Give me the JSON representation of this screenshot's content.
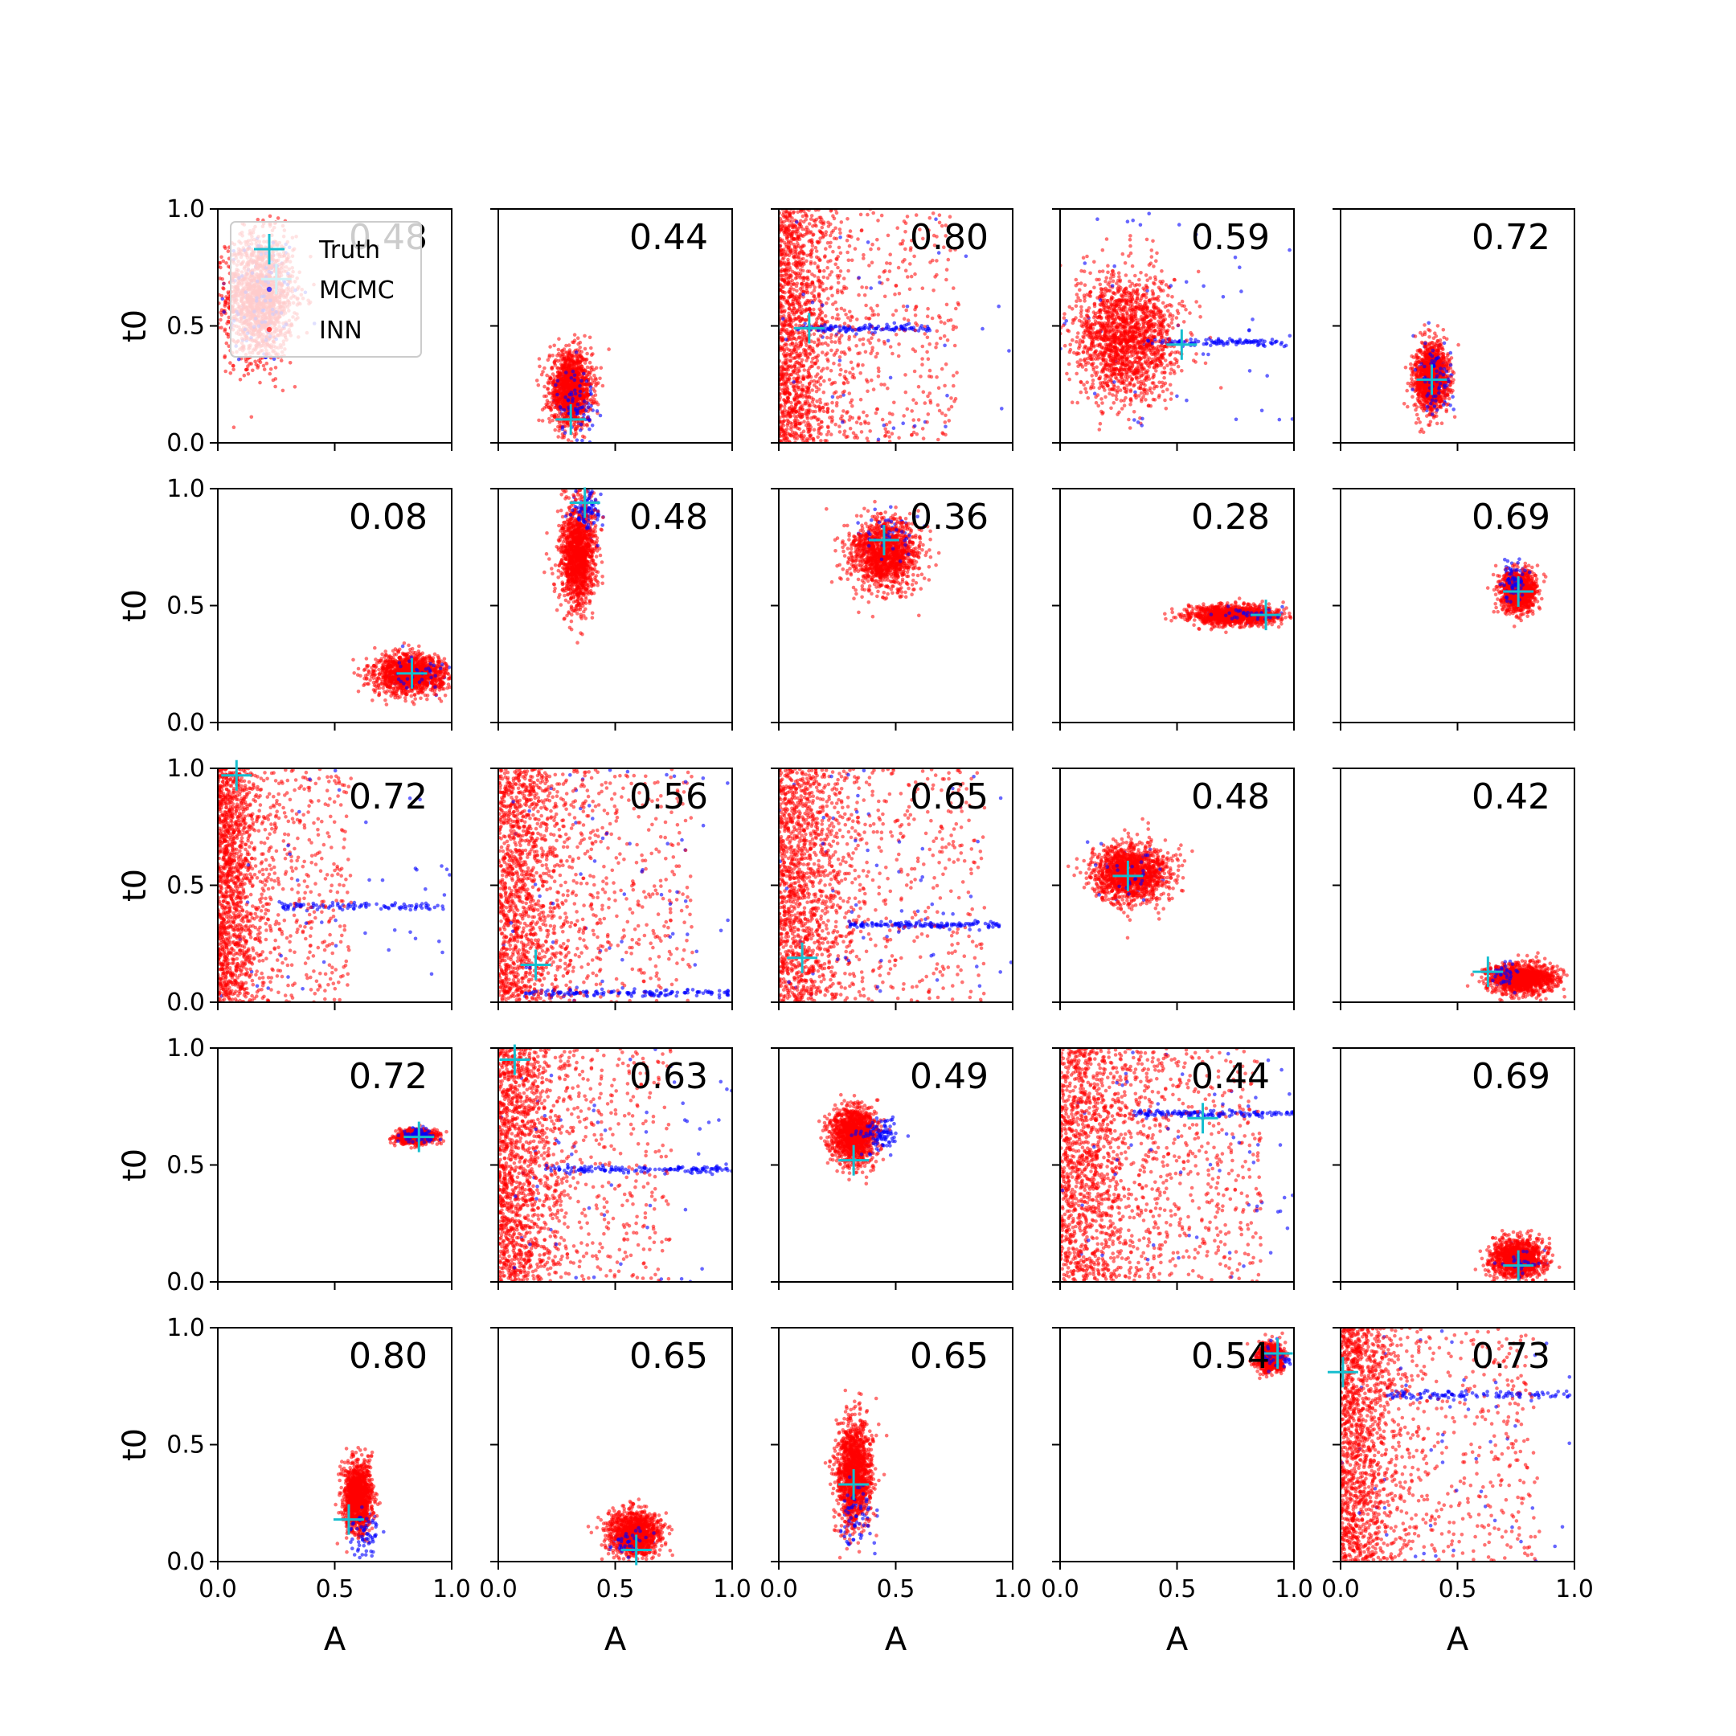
{
  "chart_data": {
    "type": "scatter",
    "layout": {
      "rows": 5,
      "cols": 5
    },
    "xlabel": "A",
    "ylabel": "t0",
    "xlim": [
      0,
      1
    ],
    "ylim": [
      0,
      1
    ],
    "xticks": [
      "0.0",
      "0.5",
      "1.0"
    ],
    "yticks": [
      "0.0",
      "0.5",
      "1.0"
    ],
    "legend": {
      "placement": "upper-left of first panel",
      "entries": [
        {
          "label": "Truth",
          "color": "#17becf",
          "marker": "plus"
        },
        {
          "label": "MCMC",
          "color": "#0000ff",
          "marker": "dot"
        },
        {
          "label": "INN",
          "color": "#ff0000",
          "marker": "dot"
        }
      ]
    },
    "colors": {
      "truth": "#17becf",
      "mcmc": "#0000ff",
      "inn": "#ff0000"
    },
    "panels": [
      {
        "score": "0.48",
        "truth": [
          0.25,
          0.7
        ],
        "inn": {
          "kind": "blob",
          "cx": 0.18,
          "cy": 0.62,
          "sx": 0.12,
          "sy": 0.22,
          "n": 1600
        },
        "mcmc": {
          "kind": "blob",
          "cx": 0.18,
          "cy": 0.62,
          "sx": 0.14,
          "sy": 0.25,
          "n": 120
        }
      },
      {
        "score": "0.44",
        "truth": [
          0.31,
          0.1
        ],
        "inn": {
          "kind": "blob",
          "cx": 0.31,
          "cy": 0.23,
          "sx": 0.075,
          "sy": 0.13,
          "n": 1300
        },
        "mcmc": {
          "kind": "blob",
          "cx": 0.33,
          "cy": 0.18,
          "sx": 0.07,
          "sy": 0.12,
          "n": 120
        }
      },
      {
        "score": "0.80",
        "truth": [
          0.13,
          0.49
        ],
        "inn": {
          "kind": "band",
          "x0": 0.0,
          "x1": 0.22,
          "tail": 0.55,
          "n": 1700
        },
        "mcmc": {
          "kind": "streak",
          "y": 0.49,
          "x0": 0.08,
          "x1": 0.65,
          "n": 160
        }
      },
      {
        "score": "0.59",
        "truth": [
          0.52,
          0.42
        ],
        "inn": {
          "kind": "blob",
          "cx": 0.28,
          "cy": 0.45,
          "sx": 0.18,
          "sy": 0.22,
          "n": 1700
        },
        "mcmc": {
          "kind": "streak",
          "y": 0.43,
          "x0": 0.35,
          "x1": 0.95,
          "n": 160
        }
      },
      {
        "score": "0.72",
        "truth": [
          0.39,
          0.27
        ],
        "inn": {
          "kind": "blob",
          "cx": 0.39,
          "cy": 0.28,
          "sx": 0.06,
          "sy": 0.12,
          "n": 1200
        },
        "mcmc": {
          "kind": "blob",
          "cx": 0.4,
          "cy": 0.28,
          "sx": 0.06,
          "sy": 0.12,
          "n": 120
        }
      },
      {
        "score": "0.08",
        "truth": [
          0.83,
          0.21
        ],
        "inn": {
          "kind": "blob",
          "cx": 0.82,
          "cy": 0.21,
          "sx": 0.13,
          "sy": 0.07,
          "n": 1300
        },
        "mcmc": {
          "kind": "blob",
          "cx": 0.85,
          "cy": 0.21,
          "sx": 0.1,
          "sy": 0.06,
          "n": 60
        }
      },
      {
        "score": "0.48",
        "truth": [
          0.37,
          0.94
        ],
        "inn": {
          "kind": "blob",
          "cx": 0.34,
          "cy": 0.72,
          "sx": 0.06,
          "sy": 0.18,
          "n": 1400
        },
        "mcmc": {
          "kind": "blob",
          "cx": 0.38,
          "cy": 0.9,
          "sx": 0.05,
          "sy": 0.08,
          "n": 100
        }
      },
      {
        "score": "0.36",
        "truth": [
          0.45,
          0.78
        ],
        "inn": {
          "kind": "blob",
          "cx": 0.45,
          "cy": 0.72,
          "sx": 0.12,
          "sy": 0.12,
          "n": 1400
        },
        "mcmc": {
          "kind": "blob",
          "cx": 0.47,
          "cy": 0.8,
          "sx": 0.1,
          "sy": 0.08,
          "n": 60
        }
      },
      {
        "score": "0.28",
        "truth": [
          0.88,
          0.46
        ],
        "inn": {
          "kind": "blob",
          "cx": 0.74,
          "cy": 0.46,
          "sx": 0.16,
          "sy": 0.035,
          "n": 1200
        },
        "mcmc": {
          "kind": "blob",
          "cx": 0.8,
          "cy": 0.46,
          "sx": 0.12,
          "sy": 0.03,
          "n": 60
        }
      },
      {
        "score": "0.69",
        "truth": [
          0.76,
          0.56
        ],
        "inn": {
          "kind": "blob",
          "cx": 0.76,
          "cy": 0.56,
          "sx": 0.06,
          "sy": 0.07,
          "n": 1100
        },
        "mcmc": {
          "kind": "blob",
          "cx": 0.75,
          "cy": 0.6,
          "sx": 0.04,
          "sy": 0.07,
          "n": 120
        }
      },
      {
        "score": "0.72",
        "truth": [
          0.08,
          0.97
        ],
        "inn": {
          "kind": "band",
          "x0": 0.0,
          "x1": 0.17,
          "tail": 0.4,
          "n": 1700
        },
        "mcmc": {
          "kind": "streak",
          "y": 0.41,
          "x0": 0.25,
          "x1": 0.98,
          "n": 140
        }
      },
      {
        "score": "0.56",
        "truth": [
          0.16,
          0.16
        ],
        "inn": {
          "kind": "band",
          "x0": 0.0,
          "x1": 0.28,
          "tail": 0.55,
          "n": 1700
        },
        "mcmc": {
          "kind": "streak",
          "y": 0.04,
          "x0": 0.1,
          "x1": 1.0,
          "n": 200
        }
      },
      {
        "score": "0.65",
        "truth": [
          0.1,
          0.19
        ],
        "inn": {
          "kind": "band",
          "x0": 0.0,
          "x1": 0.28,
          "tail": 0.6,
          "n": 1700
        },
        "mcmc": {
          "kind": "streak",
          "y": 0.33,
          "x0": 0.3,
          "x1": 0.95,
          "n": 200
        }
      },
      {
        "score": "0.48",
        "truth": [
          0.29,
          0.54
        ],
        "inn": {
          "kind": "blob",
          "cx": 0.3,
          "cy": 0.55,
          "sx": 0.13,
          "sy": 0.1,
          "n": 1500
        },
        "mcmc": {
          "kind": "blob",
          "cx": 0.3,
          "cy": 0.55,
          "sx": 0.12,
          "sy": 0.1,
          "n": 50
        }
      },
      {
        "score": "0.42",
        "truth": [
          0.63,
          0.13
        ],
        "inn": {
          "kind": "blob",
          "cx": 0.78,
          "cy": 0.1,
          "sx": 0.12,
          "sy": 0.05,
          "n": 1200
        },
        "mcmc": {
          "kind": "blob",
          "cx": 0.7,
          "cy": 0.12,
          "sx": 0.05,
          "sy": 0.04,
          "n": 60
        }
      },
      {
        "score": "0.72",
        "truth": [
          0.86,
          0.62
        ],
        "inn": {
          "kind": "blob",
          "cx": 0.85,
          "cy": 0.62,
          "sx": 0.07,
          "sy": 0.025,
          "n": 900
        },
        "mcmc": {
          "kind": "blob",
          "cx": 0.86,
          "cy": 0.63,
          "sx": 0.06,
          "sy": 0.025,
          "n": 120
        }
      },
      {
        "score": "0.63",
        "truth": [
          0.07,
          0.95
        ],
        "inn": {
          "kind": "band",
          "x0": 0.0,
          "x1": 0.24,
          "tail": 0.5,
          "n": 1700
        },
        "mcmc": {
          "kind": "streak",
          "y": 0.48,
          "x0": 0.2,
          "x1": 1.0,
          "n": 200
        }
      },
      {
        "score": "0.49",
        "truth": [
          0.32,
          0.52
        ],
        "inn": {
          "kind": "blob",
          "cx": 0.32,
          "cy": 0.63,
          "sx": 0.08,
          "sy": 0.1,
          "n": 1300
        },
        "mcmc": {
          "kind": "blob",
          "cx": 0.42,
          "cy": 0.63,
          "sx": 0.07,
          "sy": 0.06,
          "n": 120
        }
      },
      {
        "score": "0.44",
        "truth": [
          0.61,
          0.7
        ],
        "inn": {
          "kind": "band",
          "x0": 0.0,
          "x1": 0.36,
          "tail": 0.5,
          "n": 1800
        },
        "mcmc": {
          "kind": "streak",
          "y": 0.72,
          "x0": 0.3,
          "x1": 1.0,
          "n": 200
        }
      },
      {
        "score": "0.69",
        "truth": [
          0.76,
          0.07
        ],
        "inn": {
          "kind": "blob",
          "cx": 0.76,
          "cy": 0.1,
          "sx": 0.09,
          "sy": 0.07,
          "n": 1200
        },
        "mcmc": {
          "kind": "blob",
          "cx": 0.76,
          "cy": 0.08,
          "sx": 0.08,
          "sy": 0.05,
          "n": 50
        }
      },
      {
        "score": "0.80",
        "truth": [
          0.56,
          0.18
        ],
        "inn": {
          "kind": "blob",
          "cx": 0.6,
          "cy": 0.28,
          "sx": 0.05,
          "sy": 0.12,
          "n": 1200
        },
        "mcmc": {
          "kind": "blob",
          "cx": 0.63,
          "cy": 0.12,
          "sx": 0.05,
          "sy": 0.08,
          "n": 80
        }
      },
      {
        "score": "0.65",
        "truth": [
          0.59,
          0.05
        ],
        "inn": {
          "kind": "blob",
          "cx": 0.58,
          "cy": 0.12,
          "sx": 0.09,
          "sy": 0.08,
          "n": 1200
        },
        "mcmc": {
          "kind": "blob",
          "cx": 0.58,
          "cy": 0.08,
          "sx": 0.08,
          "sy": 0.05,
          "n": 60
        }
      },
      {
        "score": "0.65",
        "truth": [
          0.32,
          0.33
        ],
        "inn": {
          "kind": "blob",
          "cx": 0.32,
          "cy": 0.38,
          "sx": 0.06,
          "sy": 0.18,
          "n": 1400
        },
        "mcmc": {
          "kind": "blob",
          "cx": 0.33,
          "cy": 0.2,
          "sx": 0.05,
          "sy": 0.12,
          "n": 80
        }
      },
      {
        "score": "0.54",
        "truth": [
          0.93,
          0.89
        ],
        "inn": {
          "kind": "blob",
          "cx": 0.9,
          "cy": 0.87,
          "sx": 0.05,
          "sy": 0.05,
          "n": 800
        },
        "mcmc": {
          "kind": "blob",
          "cx": 0.92,
          "cy": 0.88,
          "sx": 0.05,
          "sy": 0.05,
          "n": 60
        }
      },
      {
        "score": "0.73",
        "truth": [
          0.01,
          0.81
        ],
        "inn": {
          "kind": "band",
          "x0": 0.0,
          "x1": 0.25,
          "tail": 0.6,
          "n": 1700
        },
        "mcmc": {
          "kind": "streak",
          "y": 0.71,
          "x0": 0.2,
          "x1": 1.0,
          "n": 160
        }
      }
    ]
  }
}
